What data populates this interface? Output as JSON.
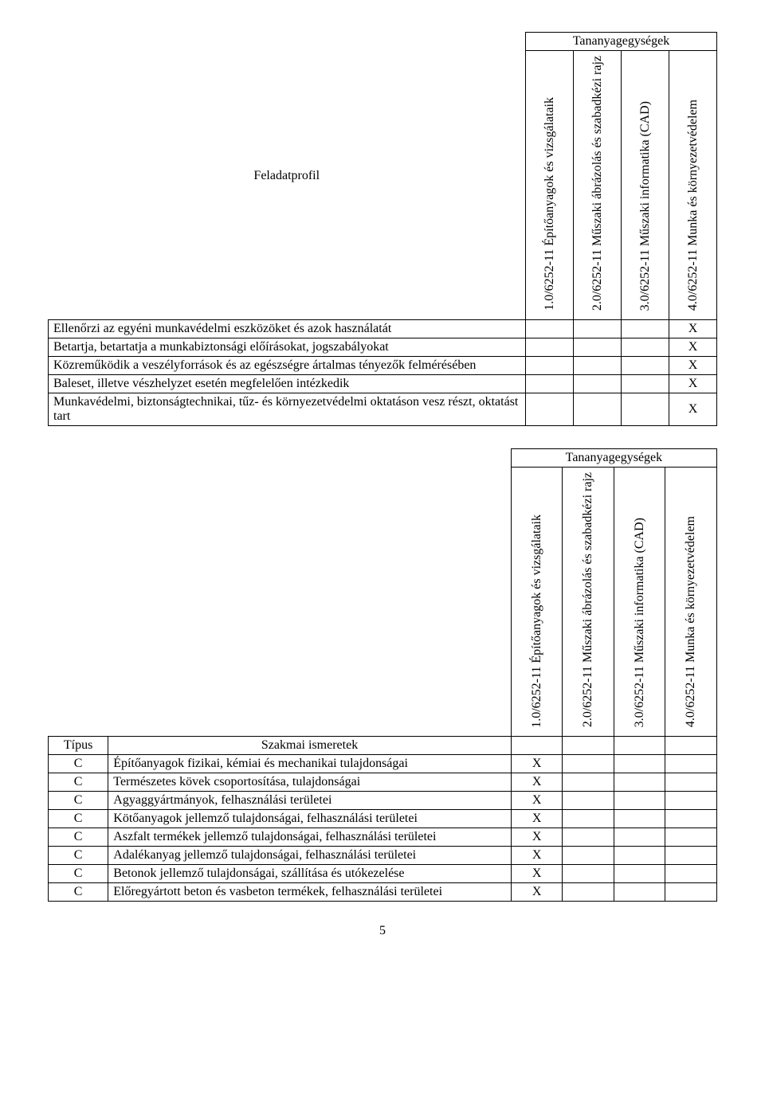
{
  "table1": {
    "group_header": "Tananyagegységek",
    "row_label": "Feladatprofil",
    "columns": [
      "1.0/6252-11 Építőanyagok és vizsgálataik",
      "2.0/6252-11 Műszaki ábrázolás és szabadkézi rajz",
      "3.0/6252-11 Műszaki informatika (CAD)",
      "4.0/6252-11 Munka és környezetvédelem"
    ],
    "rows": [
      {
        "label": "Ellenőrzi az egyéni munkavédelmi eszközöket és azok használatát",
        "marks": [
          "",
          "",
          "",
          "X"
        ]
      },
      {
        "label": "Betartja, betartatja a munkabiztonsági előírásokat, jogszabályokat",
        "marks": [
          "",
          "",
          "",
          "X"
        ]
      },
      {
        "label": "Közreműködik a veszélyforrások és az egészségre ártalmas tényezők felmérésében",
        "marks": [
          "",
          "",
          "",
          "X"
        ]
      },
      {
        "label": "Baleset, illetve vészhelyzet esetén megfelelően intézkedik",
        "marks": [
          "",
          "",
          "",
          "X"
        ]
      },
      {
        "label": "Munkavédelmi, biztonságtechnikai, tűz- és környezetvédelmi oktatáson vesz részt, oktatást tart",
        "marks": [
          "",
          "",
          "",
          "X"
        ]
      }
    ]
  },
  "table2": {
    "group_header": "Tananyagegységek",
    "type_label": "Típus",
    "row_label": "Szakmai ismeretek",
    "columns": [
      "1.0/6252-11 Építőanyagok és vizsgálataik",
      "2.0/6252-11 Műszaki ábrázolás és szabadkézi rajz",
      "3.0/6252-11 Műszaki informatika (CAD)",
      "4.0/6252-11 Munka és környezetvédelem"
    ],
    "rows": [
      {
        "type": "C",
        "label": "Építőanyagok fizikai, kémiai és mechanikai tulajdonságai",
        "marks": [
          "X",
          "",
          "",
          ""
        ],
        "justify": true
      },
      {
        "type": "C",
        "label": "Természetes kövek csoportosítása, tulajdonságai",
        "marks": [
          "X",
          "",
          "",
          ""
        ],
        "justify": false
      },
      {
        "type": "C",
        "label": "Agyaggyártmányok, felhasználási területei",
        "marks": [
          "X",
          "",
          "",
          ""
        ],
        "justify": false
      },
      {
        "type": "C",
        "label": "Kötőanyagok jellemző tulajdonságai, felhasználási területei",
        "marks": [
          "X",
          "",
          "",
          ""
        ],
        "justify": false
      },
      {
        "type": "C",
        "label": "Aszfalt termékek jellemző tulajdonságai, felhasználási területei",
        "marks": [
          "X",
          "",
          "",
          ""
        ],
        "justify": true
      },
      {
        "type": "C",
        "label": "Adalékanyag jellemző tulajdonságai, felhasználási területei",
        "marks": [
          "X",
          "",
          "",
          ""
        ],
        "justify": false
      },
      {
        "type": "C",
        "label": "Betonok jellemző tulajdonságai, szállítása és utókezelése",
        "marks": [
          "X",
          "",
          "",
          ""
        ],
        "justify": true
      },
      {
        "type": "C",
        "label": "Előregyártott beton és vasbeton termékek, felhasználási területei",
        "marks": [
          "X",
          "",
          "",
          ""
        ],
        "justify": true
      }
    ]
  },
  "page_number": "5"
}
